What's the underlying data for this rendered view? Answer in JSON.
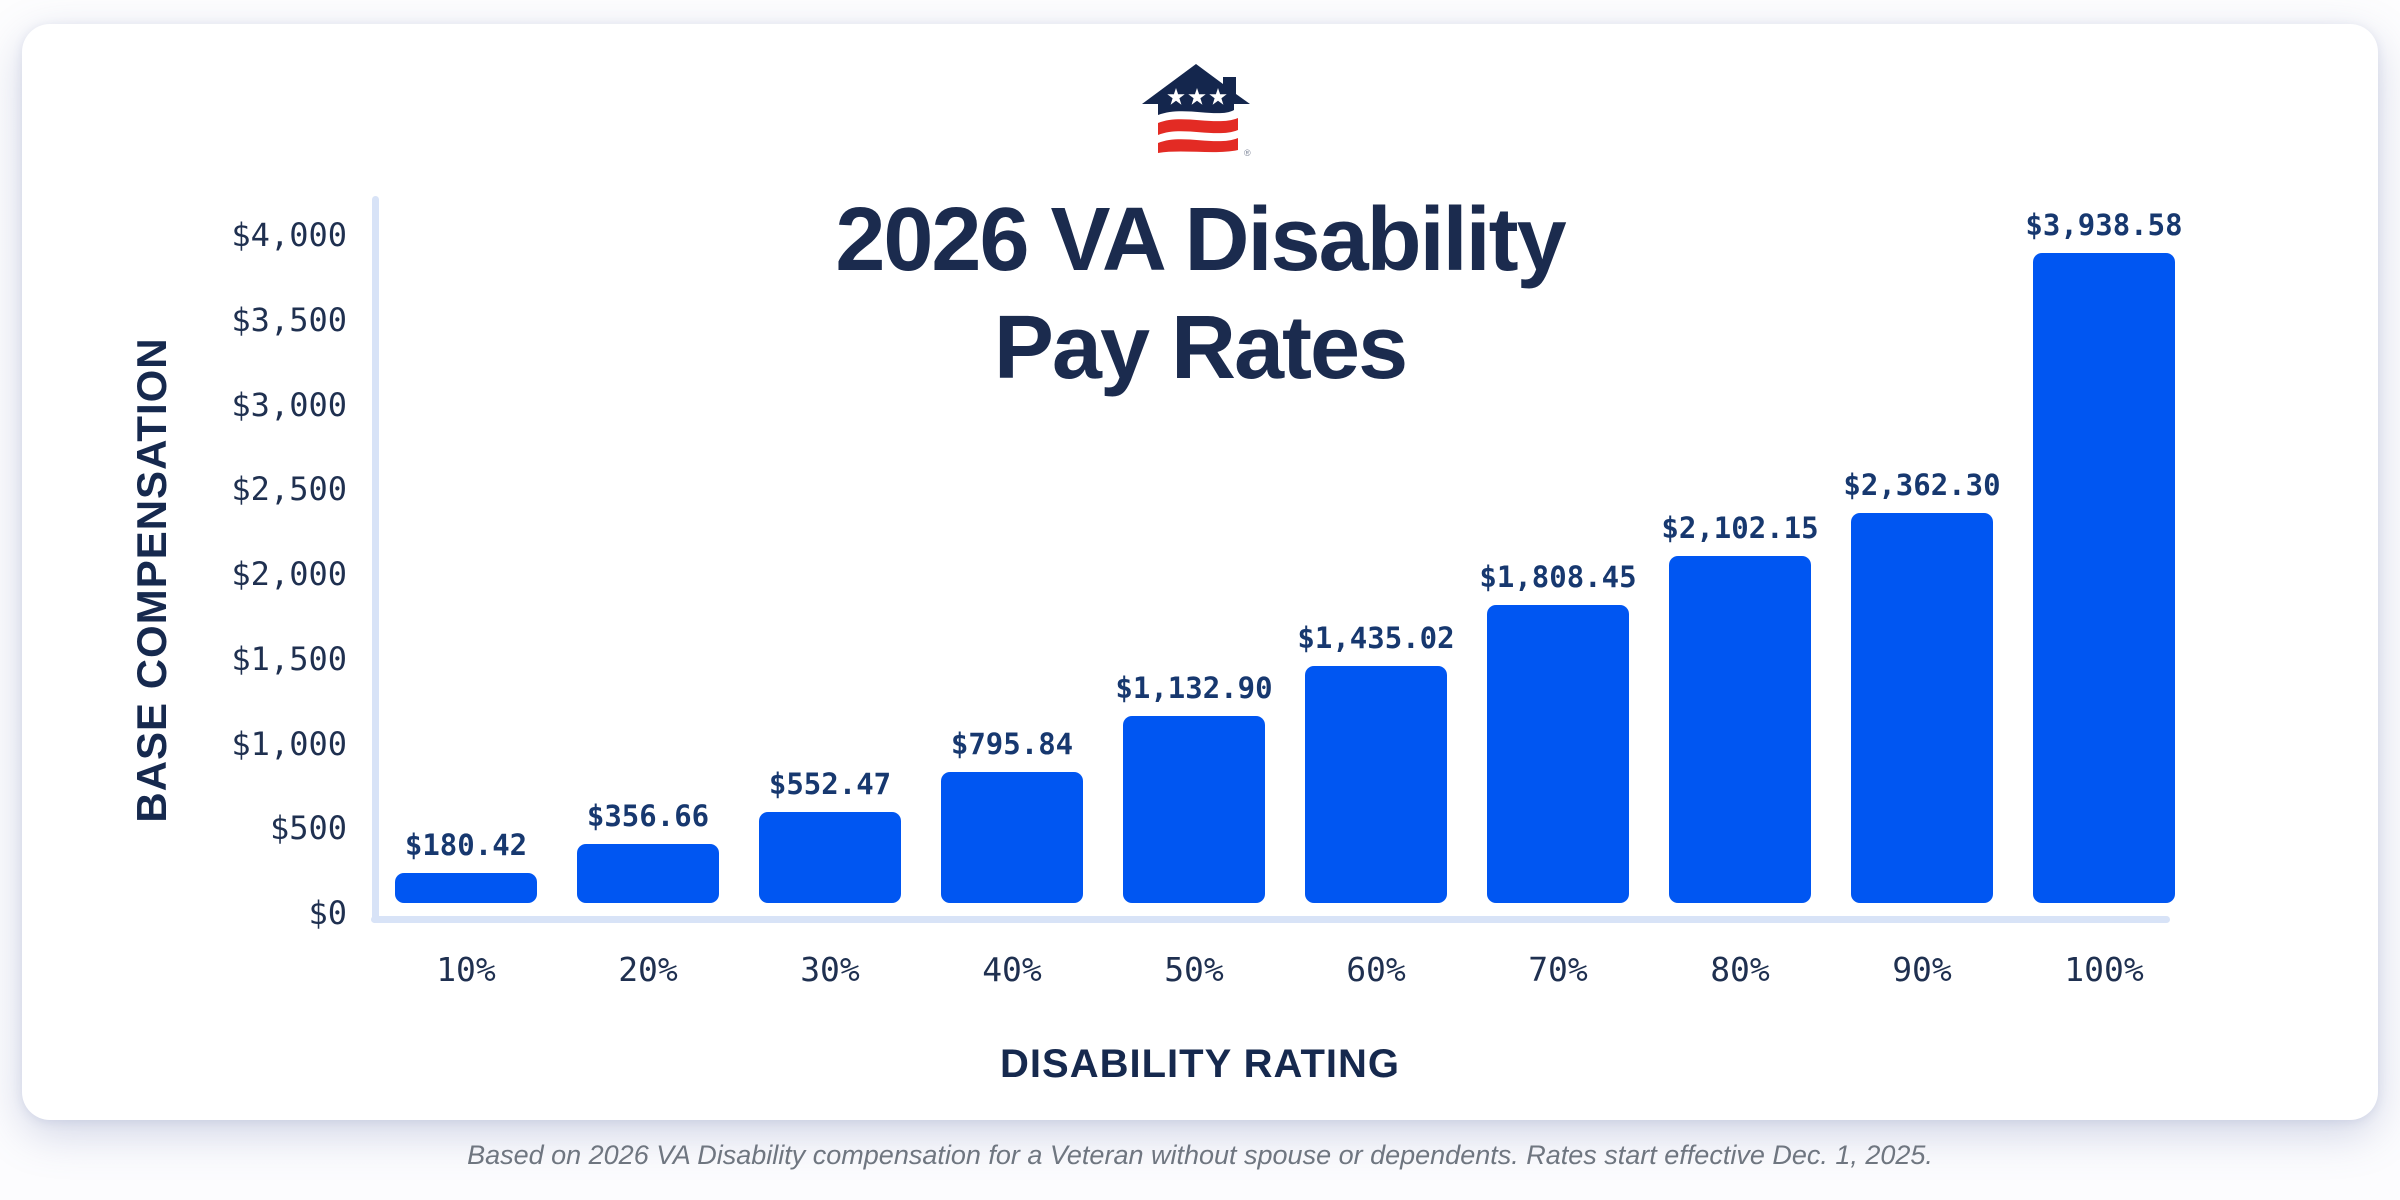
{
  "page": {
    "footer_note": "Based on 2026 VA Disability compensation for a Veteran without spouse or dependents. Rates start effective Dec. 1, 2025."
  },
  "logo": {
    "description": "house-with-stars-and-stripes-flag-logo",
    "registered_mark": "®",
    "navy": "#14264d",
    "red": "#e32b24"
  },
  "title_lines": [
    "2026 VA Disability",
    "Pay Rates"
  ],
  "chart_data": {
    "type": "bar",
    "title": "2026 VA Disability Pay Rates",
    "xlabel": "DISABILITY RATING",
    "ylabel": "BASE COMPENSATION",
    "categories": [
      "10%",
      "20%",
      "30%",
      "40%",
      "50%",
      "60%",
      "70%",
      "80%",
      "90%",
      "100%"
    ],
    "values": [
      180.42,
      356.66,
      552.47,
      795.84,
      1132.9,
      1435.02,
      1808.45,
      2102.15,
      2362.3,
      3938.58
    ],
    "value_labels": [
      "$180.42",
      "$356.66",
      "$552.47",
      "$795.84",
      "$1,132.90",
      "$1,435.02",
      "$1,808.45",
      "$2,102.15",
      "$2,362.30",
      "$3,938.58"
    ],
    "y_ticks": [
      "$0",
      "$500",
      "$1,000",
      "$1,500",
      "$2,000",
      "$2,500",
      "$3,000",
      "$3,500",
      "$4,000"
    ],
    "ylim": [
      0,
      4000
    ],
    "grid": false,
    "legend": "none",
    "bar_color": "#0056f2",
    "axis_line_color": "#d8e3f7",
    "value_label_color": "#17386f",
    "tick_color": "#1f3050",
    "title_color": "#1b2b4e"
  }
}
